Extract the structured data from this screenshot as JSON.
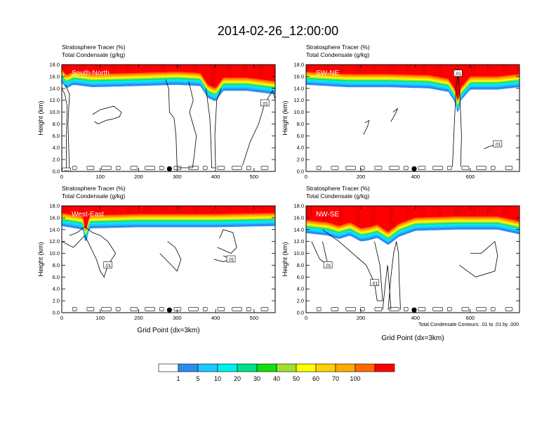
{
  "figure": {
    "title": "2014-02-26_12:00:00",
    "footnote": "Total Condensate Contours: .01 to .01 by .000",
    "colorbar": {
      "colors": [
        "#ffffff",
        "#2b8cf2",
        "#1ec8ff",
        "#00f0f0",
        "#00e08a",
        "#10e010",
        "#a0e030",
        "#ffff00",
        "#ffd200",
        "#ffaa00",
        "#ff6a00",
        "#ff0000"
      ],
      "labels": [
        "1",
        "5",
        "10",
        "20",
        "30",
        "40",
        "50",
        "60",
        "70",
        "100"
      ]
    }
  },
  "chart_data": [
    {
      "type": "contour",
      "panel": "South-North",
      "title_lines": [
        "Stratosphere Tracer   (%)",
        "Total Condensate   (g/kg)"
      ],
      "ylabel": "Height (km)",
      "xlabel": "",
      "xlim": [
        0,
        555
      ],
      "ylim": [
        0,
        18
      ],
      "xticks": [
        0,
        100,
        200,
        300,
        400,
        500
      ],
      "yticks": [
        "0.0",
        "2.0",
        "4.0",
        "6.0",
        "8.0",
        "10.0",
        "12.0",
        "14.0",
        "16.0",
        "18.0"
      ],
      "marker_x": 280,
      "contour_label": ".01",
      "tracer_base": [
        [
          0,
          15.6
        ],
        [
          12,
          14.6
        ],
        [
          30,
          15.2
        ],
        [
          80,
          14.8
        ],
        [
          200,
          15.0
        ],
        [
          300,
          15.2
        ],
        [
          360,
          15.0
        ],
        [
          380,
          13.0
        ],
        [
          400,
          12.4
        ],
        [
          420,
          14.2
        ],
        [
          480,
          14.2
        ],
        [
          555,
          13.6
        ]
      ],
      "contours": [
        [
          [
            0,
            14
          ],
          [
            8,
            13
          ],
          [
            14,
            11
          ],
          [
            12,
            6
          ],
          [
            12,
            0
          ],
          [
            20,
            0
          ],
          [
            16,
            8
          ],
          [
            20,
            13
          ],
          [
            10,
            14.5
          ]
        ],
        [
          [
            80,
            9.6
          ],
          [
            100,
            10.4
          ],
          [
            135,
            11.0
          ],
          [
            155,
            10.0
          ],
          [
            150,
            9.2
          ],
          [
            130,
            8.8
          ],
          [
            115,
            8.6
          ],
          [
            95,
            8.0
          ],
          [
            85,
            8.4
          ]
        ],
        [
          [
            330,
            15.2
          ],
          [
            342,
            12
          ],
          [
            332,
            10
          ],
          [
            350,
            6
          ],
          [
            345,
            3
          ],
          [
            340,
            0.6
          ],
          [
            300,
            0.6
          ],
          [
            297,
            6
          ],
          [
            292,
            9
          ],
          [
            280,
            10
          ],
          [
            278,
            14
          ],
          [
            270,
            15.5
          ]
        ],
        [
          [
            375,
            14
          ],
          [
            385,
            9
          ],
          [
            388,
            5
          ],
          [
            390,
            0.6
          ],
          [
            400,
            0.6
          ],
          [
            398,
            6
          ],
          [
            403,
            12
          ],
          [
            415,
            14
          ]
        ],
        [
          [
            470,
            1
          ],
          [
            490,
            5
          ],
          [
            512,
            8
          ],
          [
            528,
            11.5
          ],
          [
            548,
            13.6
          ],
          [
            555,
            12.2
          ]
        ]
      ]
    },
    {
      "type": "contour",
      "panel": "SW-NE",
      "title_lines": [
        "Stratosphere Tracer   (%)",
        "Total Condensate   (g/kg)"
      ],
      "ylabel": "Height (km)",
      "xlabel": "",
      "xlim": [
        0,
        780
      ],
      "ylim": [
        0,
        18
      ],
      "xticks": [
        0,
        200,
        400,
        600
      ],
      "yticks": [
        "0.0",
        "2.0",
        "4.0",
        "6.0",
        "8.0",
        "10.0",
        "12.0",
        "14.0",
        "16.0",
        "18.0"
      ],
      "marker_x": 395,
      "contour_label": ".01",
      "tracer_base": [
        [
          0,
          15.2
        ],
        [
          150,
          14.8
        ],
        [
          300,
          14.8
        ],
        [
          450,
          14.6
        ],
        [
          520,
          14.0
        ],
        [
          545,
          12.2
        ],
        [
          555,
          10.0
        ],
        [
          565,
          12.5
        ],
        [
          600,
          14.4
        ],
        [
          700,
          14.4
        ],
        [
          780,
          14.8
        ]
      ],
      "contours": [
        [
          [
            535,
            0.8
          ],
          [
            542,
            8
          ],
          [
            548,
            14
          ],
          [
            555,
            16.5
          ],
          [
            562,
            13
          ],
          [
            568,
            6
          ],
          [
            565,
            0.8
          ]
        ],
        [
          [
            210,
            6.2
          ],
          [
            225,
            7.6
          ],
          [
            230,
            8.6
          ],
          [
            215,
            8.2
          ]
        ],
        [
          [
            310,
            8.4
          ],
          [
            325,
            9.6
          ],
          [
            335,
            10.6
          ],
          [
            318,
            10.0
          ]
        ],
        [
          [
            650,
            3.8
          ],
          [
            670,
            4.2
          ],
          [
            700,
            4.6
          ],
          [
            685,
            5.2
          ]
        ]
      ]
    },
    {
      "type": "contour",
      "panel": "West-East",
      "title_lines": [
        "Stratosphere Tracer   (%)",
        "Total Condensate   (g/kg)"
      ],
      "ylabel": "Height (km)",
      "xlabel": "Grid Point (dx=3km)",
      "xlim": [
        0,
        555
      ],
      "ylim": [
        0,
        18
      ],
      "xticks": [
        0,
        100,
        200,
        300,
        400,
        500
      ],
      "yticks": [
        "0.0",
        "2.0",
        "4.0",
        "6.0",
        "8.0",
        "10.0",
        "12.0",
        "14.0",
        "16.0",
        "18.0"
      ],
      "marker_x": 280,
      "contour_label": ".01",
      "tracer_base": [
        [
          0,
          15.2
        ],
        [
          55,
          14.6
        ],
        [
          62,
          12.0
        ],
        [
          72,
          14.8
        ],
        [
          200,
          15.0
        ],
        [
          400,
          15.0
        ],
        [
          555,
          15.2
        ]
      ],
      "contours": [
        [
          [
            0,
            12
          ],
          [
            30,
            11
          ],
          [
            60,
            13
          ],
          [
            75,
            11
          ],
          [
            90,
            9
          ],
          [
            100,
            7
          ],
          [
            110,
            6
          ],
          [
            120,
            8
          ],
          [
            140,
            10
          ],
          [
            120,
            12
          ],
          [
            100,
            13
          ],
          [
            80,
            13.5
          ],
          [
            60,
            14.5
          ],
          [
            40,
            13.5
          ],
          [
            20,
            13
          ]
        ],
        [
          [
            255,
            10
          ],
          [
            270,
            9
          ],
          [
            285,
            8
          ],
          [
            300,
            7
          ],
          [
            310,
            9
          ],
          [
            295,
            11
          ],
          [
            275,
            12
          ]
        ],
        [
          [
            405,
            11
          ],
          [
            440,
            10
          ],
          [
            455,
            11
          ],
          [
            445,
            13.5
          ],
          [
            420,
            14
          ],
          [
            410,
            12.5
          ]
        ],
        [
          [
            395,
            9
          ],
          [
            420,
            8.6
          ],
          [
            440,
            9
          ],
          [
            420,
            9.6
          ]
        ]
      ]
    },
    {
      "type": "contour",
      "panel": "NW-SE",
      "title_lines": [
        "Stratosphere Tracer   (%)",
        "Total Condensate   (g/kg)"
      ],
      "ylabel": "Height (km)",
      "xlabel": "Grid Point (dx=3km)",
      "xlim": [
        0,
        780
      ],
      "ylim": [
        0,
        18
      ],
      "xticks": [
        0,
        200,
        400,
        600
      ],
      "yticks": [
        "0.0",
        "2.0",
        "4.0",
        "6.0",
        "8.0",
        "10.0",
        "12.0",
        "14.0",
        "16.0",
        "18.0"
      ],
      "marker_x": 395,
      "contour_label": ".01",
      "tracer_base": [
        [
          0,
          14.0
        ],
        [
          80,
          13.6
        ],
        [
          120,
          13.0
        ],
        [
          160,
          13.6
        ],
        [
          200,
          12.6
        ],
        [
          230,
          12.8
        ],
        [
          260,
          13.2
        ],
        [
          300,
          12.0
        ],
        [
          340,
          13.4
        ],
        [
          400,
          14.4
        ],
        [
          550,
          14.6
        ],
        [
          700,
          14.6
        ],
        [
          780,
          13.8
        ]
      ],
      "contours": [
        [
          [
            60,
            14
          ],
          [
            120,
            12
          ],
          [
            170,
            10
          ],
          [
            220,
            8
          ],
          [
            250,
            5
          ],
          [
            260,
            2
          ],
          [
            280,
            2
          ],
          [
            270,
            8
          ],
          [
            250,
            12
          ]
        ],
        [
          [
            300,
            0.5
          ],
          [
            310,
            6
          ],
          [
            320,
            10
          ],
          [
            330,
            12
          ],
          [
            338,
            10
          ],
          [
            340,
            6
          ],
          [
            345,
            0.5
          ]
        ],
        [
          [
            280,
            0.5
          ],
          [
            290,
            5
          ],
          [
            298,
            8
          ],
          [
            305,
            4
          ],
          [
            310,
            0.5
          ]
        ],
        [
          [
            560,
            8
          ],
          [
            620,
            6
          ],
          [
            690,
            7
          ],
          [
            700,
            9.6
          ],
          [
            690,
            12
          ],
          [
            640,
            10
          ],
          [
            600,
            10
          ]
        ],
        [
          [
            20,
            12
          ],
          [
            50,
            9
          ],
          [
            80,
            8
          ],
          [
            60,
            12
          ]
        ]
      ]
    }
  ]
}
